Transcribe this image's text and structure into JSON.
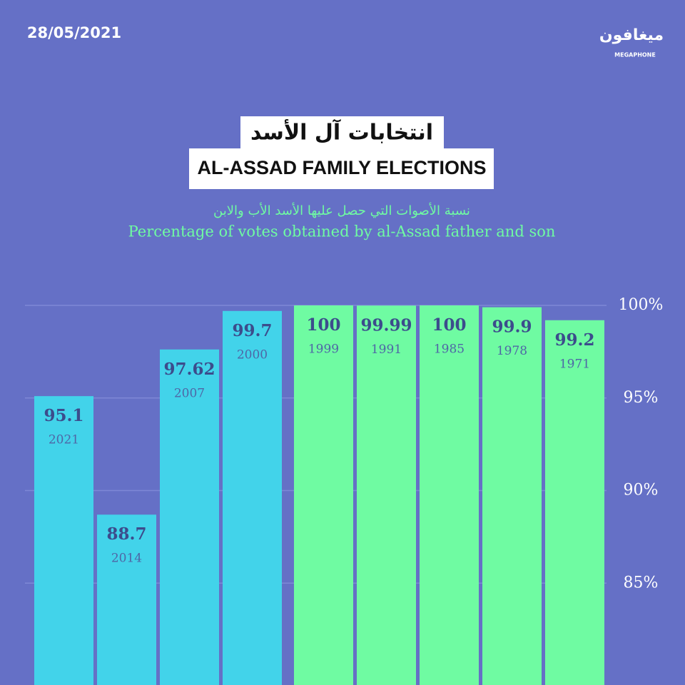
{
  "date": "28/05/2021",
  "logo": {
    "arabic": "ميغافون",
    "latin": "MEGAPHONE"
  },
  "chart_data": {
    "type": "bar",
    "title_arabic": "انتخابات آل الأسد",
    "title": "AL-ASSAD FAMILY ELECTIONS",
    "subtitle_arabic": "نسبة الأصوات التي حصل عليها الأسد الأب والابن",
    "subtitle": "Percentage of votes obtained by al-Assad father and son",
    "categories": [
      "2021",
      "2014",
      "2007",
      "2000",
      "1999",
      "1991",
      "1985",
      "1978",
      "1971"
    ],
    "values": [
      95.1,
      88.7,
      97.62,
      99.7,
      100,
      99.99,
      100,
      99.9,
      99.2
    ],
    "colors": [
      "#42d3ea",
      "#42d3ea",
      "#42d3ea",
      "#42d3ea",
      "#6ffba2",
      "#6ffba2",
      "#6ffba2",
      "#6ffba2",
      "#6ffba2"
    ],
    "ylim": [
      79.5,
      100
    ],
    "yticks": [
      {
        "value": 85,
        "label": "85%"
      },
      {
        "value": 90,
        "label": "90%"
      },
      {
        "value": 95,
        "label": "95%"
      },
      {
        "value": 100,
        "label": "100%"
      }
    ],
    "grid": true
  }
}
